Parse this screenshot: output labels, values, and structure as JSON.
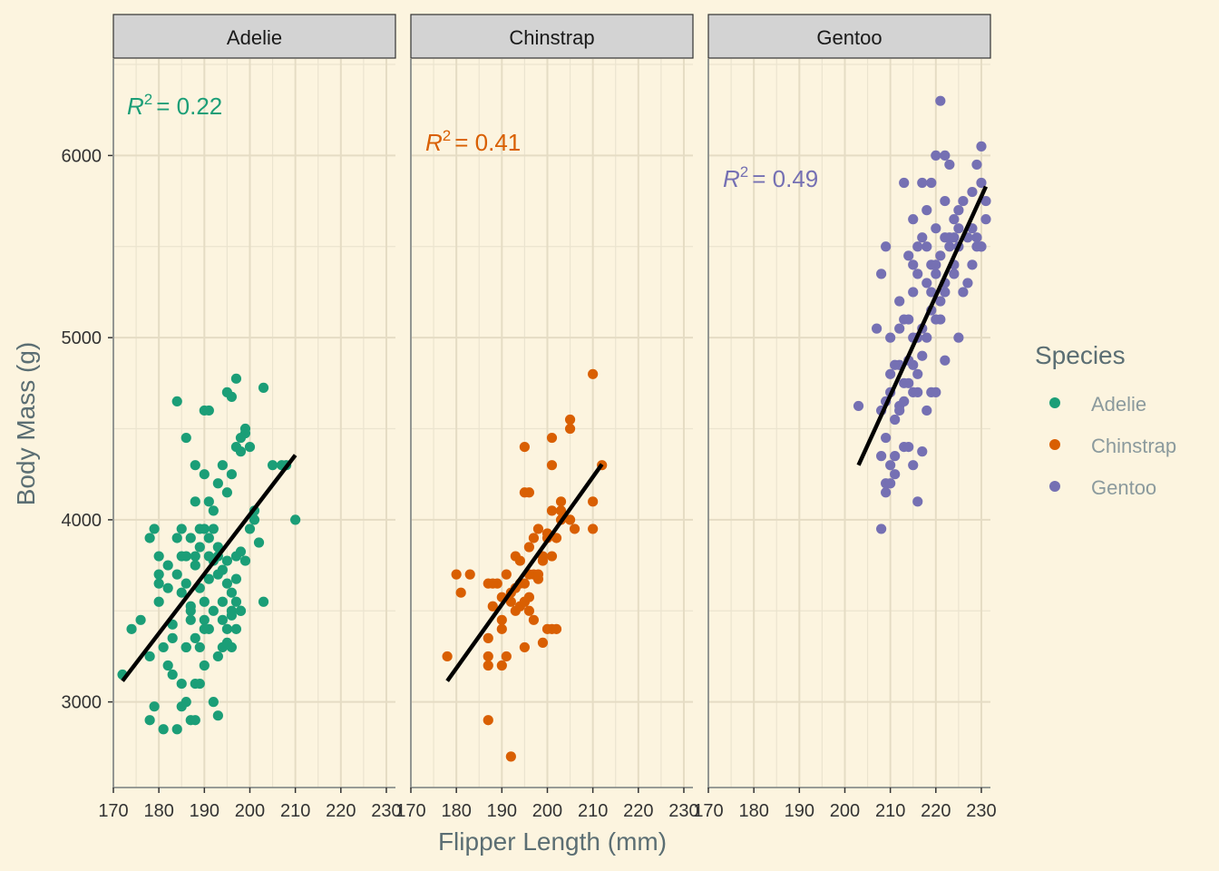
{
  "chart_data": {
    "type": "scatter",
    "xlabel": "Flipper Length (mm)",
    "ylabel": "Body Mass (g)",
    "xlim": [
      170,
      232
    ],
    "ylim": [
      2530,
      6530
    ],
    "x_ticks": [
      170,
      180,
      190,
      200,
      210,
      220,
      230
    ],
    "y_ticks": [
      3000,
      4000,
      5000,
      6000
    ],
    "grid": true,
    "legend": {
      "title": "Species",
      "position": "right"
    },
    "panels": [
      {
        "name": "Adelie",
        "color": "#1b9e77",
        "r2_value": "= 0.22",
        "fit_line": {
          "x": [
            172,
            210
          ],
          "y": [
            3115,
            4355
          ]
        },
        "points": [
          [
            172,
            3150
          ],
          [
            174,
            3400
          ],
          [
            176,
            3450
          ],
          [
            178,
            3250
          ],
          [
            179,
            2975
          ],
          [
            178,
            2900
          ],
          [
            180,
            3650
          ],
          [
            181,
            2850
          ],
          [
            182,
            3200
          ],
          [
            183,
            3425
          ],
          [
            184,
            2850
          ],
          [
            185,
            3100
          ],
          [
            185,
            2975
          ],
          [
            186,
            3000
          ],
          [
            187,
            2900
          ],
          [
            188,
            2900
          ],
          [
            186,
            3300
          ],
          [
            187,
            3450
          ],
          [
            188,
            3350
          ],
          [
            189,
            3300
          ],
          [
            190,
            3200
          ],
          [
            191,
            3400
          ],
          [
            192,
            3000
          ],
          [
            193,
            2925
          ],
          [
            193,
            3250
          ],
          [
            194,
            3550
          ],
          [
            195,
            3400
          ],
          [
            196,
            3500
          ],
          [
            197,
            3550
          ],
          [
            198,
            3500
          ],
          [
            180,
            3550
          ],
          [
            181,
            3300
          ],
          [
            182,
            3625
          ],
          [
            183,
            3150
          ],
          [
            184,
            3700
          ],
          [
            185,
            3800
          ],
          [
            186,
            3650
          ],
          [
            187,
            3500
          ],
          [
            188,
            3750
          ],
          [
            189,
            3625
          ],
          [
            190,
            3550
          ],
          [
            190,
            3450
          ],
          [
            191,
            3800
          ],
          [
            192,
            3775
          ],
          [
            193,
            3700
          ],
          [
            194,
            3300
          ],
          [
            195,
            3325
          ],
          [
            196,
            3475
          ],
          [
            197,
            3800
          ],
          [
            198,
            3500
          ],
          [
            178,
            3900
          ],
          [
            179,
            3950
          ],
          [
            180,
            3800
          ],
          [
            180,
            3700
          ],
          [
            182,
            3750
          ],
          [
            184,
            3900
          ],
          [
            185,
            3950
          ],
          [
            186,
            3800
          ],
          [
            187,
            3900
          ],
          [
            188,
            3800
          ],
          [
            189,
            3950
          ],
          [
            190,
            3950
          ],
          [
            191,
            3900
          ],
          [
            192,
            3950
          ],
          [
            193,
            3800
          ],
          [
            194,
            3725
          ],
          [
            195,
            3650
          ],
          [
            196,
            3600
          ],
          [
            197,
            3400
          ],
          [
            198,
            3825
          ],
          [
            199,
            3775
          ],
          [
            200,
            3950
          ],
          [
            201,
            4000
          ],
          [
            202,
            3875
          ],
          [
            203,
            3550
          ],
          [
            188,
            4100
          ],
          [
            190,
            4250
          ],
          [
            191,
            4100
          ],
          [
            192,
            4050
          ],
          [
            193,
            4200
          ],
          [
            194,
            4300
          ],
          [
            195,
            4150
          ],
          [
            196,
            4250
          ],
          [
            197,
            4400
          ],
          [
            198,
            4375
          ],
          [
            199,
            4475
          ],
          [
            200,
            4400
          ],
          [
            201,
            4050
          ],
          [
            188,
            4300
          ],
          [
            190,
            4600
          ],
          [
            191,
            4600
          ],
          [
            184,
            4650
          ],
          [
            186,
            4450
          ],
          [
            195,
            4700
          ],
          [
            196,
            4675
          ],
          [
            197,
            4775
          ],
          [
            198,
            4450
          ],
          [
            199,
            4500
          ],
          [
            203,
            4725
          ],
          [
            205,
            4300
          ],
          [
            207,
            4300
          ],
          [
            208,
            4300
          ],
          [
            210,
            4000
          ],
          [
            186,
            3300
          ],
          [
            188,
            3100
          ],
          [
            189,
            3100
          ],
          [
            190,
            3400
          ],
          [
            192,
            3500
          ],
          [
            194,
            3450
          ],
          [
            196,
            3300
          ],
          [
            183,
            3350
          ],
          [
            185,
            3600
          ],
          [
            187,
            3525
          ],
          [
            189,
            3850
          ],
          [
            191,
            3675
          ],
          [
            193,
            3850
          ],
          [
            195,
            3775
          ],
          [
            197,
            3675
          ]
        ]
      },
      {
        "name": "Chinstrap",
        "color": "#d95f02",
        "r2_value": "= 0.41",
        "fit_line": {
          "x": [
            178,
            212
          ],
          "y": [
            3115,
            4305
          ]
        },
        "points": [
          [
            178,
            3250
          ],
          [
            180,
            3700
          ],
          [
            181,
            3600
          ],
          [
            183,
            3700
          ],
          [
            187,
            3650
          ],
          [
            187,
            3350
          ],
          [
            187,
            3250
          ],
          [
            187,
            3200
          ],
          [
            187,
            2900
          ],
          [
            188,
            3525
          ],
          [
            189,
            3650
          ],
          [
            190,
            3575
          ],
          [
            190,
            3450
          ],
          [
            190,
            3400
          ],
          [
            191,
            3250
          ],
          [
            191,
            3700
          ],
          [
            192,
            3600
          ],
          [
            192,
            2700
          ],
          [
            193,
            3500
          ],
          [
            193,
            3800
          ],
          [
            193,
            3625
          ],
          [
            194,
            3775
          ],
          [
            194,
            3525
          ],
          [
            195,
            3550
          ],
          [
            195,
            3650
          ],
          [
            195,
            3550
          ],
          [
            195,
            3300
          ],
          [
            196,
            3575
          ],
          [
            196,
            3500
          ],
          [
            196,
            3700
          ],
          [
            197,
            3700
          ],
          [
            197,
            3450
          ],
          [
            198,
            3675
          ],
          [
            198,
            3700
          ],
          [
            198,
            3950
          ],
          [
            199,
            3325
          ],
          [
            199,
            3775
          ],
          [
            200,
            3400
          ],
          [
            201,
            3400
          ],
          [
            201,
            3800
          ],
          [
            201,
            4050
          ],
          [
            202,
            3400
          ],
          [
            203,
            4100
          ],
          [
            203,
            4050
          ],
          [
            205,
            4000
          ],
          [
            206,
            3950
          ],
          [
            210,
            3950
          ],
          [
            201,
            4450
          ],
          [
            205,
            4550
          ],
          [
            205,
            4500
          ],
          [
            210,
            4800
          ],
          [
            212,
            4300
          ],
          [
            201,
            4300
          ],
          [
            195,
            4150
          ],
          [
            196,
            4150
          ],
          [
            195,
            4400
          ],
          [
            210,
            4100
          ],
          [
            200,
            3900
          ],
          [
            197,
            3900
          ],
          [
            199,
            3800
          ],
          [
            200,
            3925
          ],
          [
            202,
            3900
          ],
          [
            203,
            4000
          ],
          [
            196,
            3850
          ],
          [
            194,
            3650
          ],
          [
            192,
            3550
          ],
          [
            188,
            3650
          ],
          [
            190,
            3200
          ]
        ]
      },
      {
        "name": "Gentoo",
        "color": "#7570b3",
        "r2_value": "= 0.49",
        "fit_line": {
          "x": [
            203,
            231
          ],
          "y": [
            4300,
            5830
          ]
        },
        "points": [
          [
            203,
            4625
          ],
          [
            207,
            5050
          ],
          [
            208,
            5350
          ],
          [
            208,
            4350
          ],
          [
            208,
            3950
          ],
          [
            209,
            5500
          ],
          [
            209,
            4650
          ],
          [
            209,
            4200
          ],
          [
            209,
            4150
          ],
          [
            210,
            4800
          ],
          [
            210,
            4700
          ],
          [
            210,
            4300
          ],
          [
            210,
            4200
          ],
          [
            211,
            4850
          ],
          [
            211,
            4550
          ],
          [
            211,
            4250
          ],
          [
            212,
            5200
          ],
          [
            212,
            4850
          ],
          [
            212,
            4625
          ],
          [
            213,
            5100
          ],
          [
            213,
            4750
          ],
          [
            213,
            4400
          ],
          [
            214,
            5100
          ],
          [
            214,
            4875
          ],
          [
            214,
            4400
          ],
          [
            215,
            5650
          ],
          [
            215,
            5400
          ],
          [
            215,
            5250
          ],
          [
            215,
            5000
          ],
          [
            215,
            4700
          ],
          [
            215,
            4300
          ],
          [
            216,
            5500
          ],
          [
            216,
            5000
          ],
          [
            216,
            4700
          ],
          [
            216,
            4100
          ],
          [
            217,
            5850
          ],
          [
            217,
            5550
          ],
          [
            217,
            4900
          ],
          [
            217,
            4375
          ],
          [
            218,
            5700
          ],
          [
            218,
            5300
          ],
          [
            218,
            4600
          ],
          [
            219,
            5400
          ],
          [
            219,
            5250
          ],
          [
            219,
            4700
          ],
          [
            220,
            6000
          ],
          [
            220,
            5350
          ],
          [
            220,
            5100
          ],
          [
            220,
            4700
          ],
          [
            221,
            6300
          ],
          [
            221,
            5450
          ],
          [
            221,
            5100
          ],
          [
            222,
            6000
          ],
          [
            222,
            5750
          ],
          [
            222,
            5550
          ],
          [
            222,
            4875
          ],
          [
            223,
            5950
          ],
          [
            223,
            5550
          ],
          [
            224,
            5650
          ],
          [
            224,
            5550
          ],
          [
            224,
            5350
          ],
          [
            225,
            5700
          ],
          [
            225,
            5000
          ],
          [
            226,
            5250
          ],
          [
            228,
            5600
          ],
          [
            228,
            5400
          ],
          [
            229,
            5950
          ],
          [
            229,
            5550
          ],
          [
            230,
            5850
          ],
          [
            230,
            5500
          ],
          [
            230,
            6050
          ],
          [
            231,
            5650
          ],
          [
            228,
            5800
          ],
          [
            226,
            5750
          ],
          [
            224,
            5400
          ],
          [
            222,
            5250
          ],
          [
            220,
            5600
          ],
          [
            218,
            5500
          ],
          [
            216,
            5350
          ],
          [
            214,
            5450
          ],
          [
            212,
            5050
          ],
          [
            210,
            5000
          ],
          [
            213,
            5850
          ],
          [
            219,
            5850
          ],
          [
            225,
            5500
          ],
          [
            227,
            5300
          ],
          [
            229,
            5500
          ],
          [
            231,
            5750
          ],
          [
            212,
            4600
          ],
          [
            214,
            4750
          ],
          [
            216,
            4800
          ],
          [
            218,
            5000
          ],
          [
            220,
            5400
          ],
          [
            222,
            5300
          ],
          [
            209,
            4450
          ],
          [
            211,
            4350
          ],
          [
            213,
            4650
          ],
          [
            215,
            4850
          ],
          [
            217,
            5050
          ],
          [
            219,
            5150
          ],
          [
            221,
            5200
          ],
          [
            223,
            5500
          ],
          [
            225,
            5600
          ],
          [
            227,
            5550
          ],
          [
            230,
            5500
          ],
          [
            208,
            4600
          ]
        ]
      }
    ]
  }
}
